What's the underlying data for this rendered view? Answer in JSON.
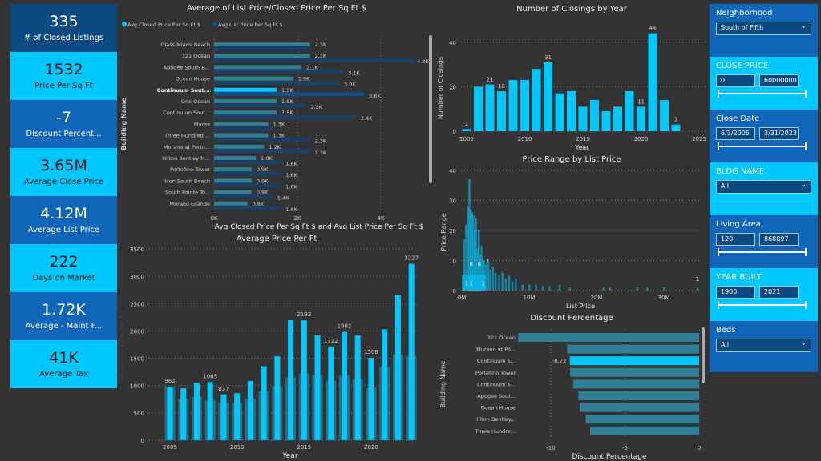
{
  "kpis": [
    {
      "value": "335",
      "label": "# of Closed Listings",
      "style": "dark"
    },
    {
      "value": "1532",
      "label": "Price Per Sq Ft",
      "style": "cyan"
    },
    {
      "value": "-7",
      "label": "Discount Percent...",
      "style": "blue"
    },
    {
      "value": "3.65M",
      "label": "Average Close Price",
      "style": "cyan"
    },
    {
      "value": "4.12M",
      "label": "Average List Price",
      "style": "blue"
    },
    {
      "value": "222",
      "label": "Days on Market",
      "style": "cyan"
    },
    {
      "value": "1.72K",
      "label": "Average - Maint F...",
      "style": "blue"
    },
    {
      "value": "41K",
      "label": "Average Tax",
      "style": "cyan"
    }
  ],
  "slicers": {
    "neighborhood": {
      "title": "Neighborhood",
      "value": "South of Fifth"
    },
    "close_price": {
      "title": "CLOSE PRICE",
      "min": "0",
      "max": "60000000"
    },
    "close_date": {
      "title": "Close Date",
      "min": "6/3/2005",
      "max": "3/31/2023"
    },
    "bldg_name": {
      "title": "BLDG NAME",
      "value": "All"
    },
    "living_area": {
      "title": "Living Area",
      "min": "120",
      "max": "868897"
    },
    "year_built": {
      "title": "YEAR BUILT",
      "min": "1900",
      "max": "2021"
    },
    "beds": {
      "title": "Beds",
      "value": "All"
    }
  },
  "colors": {
    "cyan": "#00c8ff",
    "teal": "#2f7f95",
    "navy": "#1c3f66",
    "bg": "#333333"
  },
  "chart_data": [
    {
      "type": "bar",
      "orientation": "horizontal",
      "title": "Average of List Price/Closed Price Per Sq Ft $",
      "legend": [
        "Avg Closed Price Per Sq Ft $",
        "Avg List Price Per Sq Ft $"
      ],
      "legend_position": "top-left",
      "ylabel": "Building Name",
      "xlabel": "Avg Closed Price Per Sq Ft $ and Avg List Price Per Sq Ft $",
      "xticks": [
        "0K",
        "2K",
        "4K"
      ],
      "xlim": [
        0,
        4.8
      ],
      "highlight": 4,
      "categories": [
        "Glass Miami Beach",
        "321 Ocean",
        "Apogee South B...",
        "Ocean House",
        "Continuum Sout...",
        "One Ocean",
        "Continuum Sout...",
        "Marea",
        "Three Hundred ...",
        "Murano at Porto...",
        "Hilton Bentley M...",
        "Portofino Tower",
        "Icon South Beach",
        "South Pointe To...",
        "Murano Grande"
      ],
      "closed": [
        2.3,
        2.3,
        2.1,
        1.9,
        1.5,
        1.5,
        1.5,
        1.3,
        1.3,
        1.2,
        1.0,
        0.9,
        0.9,
        0.9,
        0.8
      ],
      "closed_labels": [
        "2.3K",
        "2.3K",
        "2.1K",
        "1.9K",
        "1.5K",
        "1.5K",
        "1.5K",
        "1.3K",
        "1.3K",
        "1.2K",
        "1.0K",
        "0.9K",
        "0.9K",
        "0.9K",
        "0.8K"
      ],
      "list": [
        2.25,
        4.8,
        3.1,
        3.0,
        3.6,
        2.2,
        3.4,
        1.4,
        2.3,
        2.3,
        1.6,
        1.6,
        1.6,
        1.4,
        1.6
      ],
      "list_labels": [
        "",
        "4.8K",
        "3.1K",
        "3.0K",
        "3.6K",
        "2.2K",
        "3.4K",
        "",
        "2.3K",
        "2.3K",
        "1.6K",
        "1.6K",
        "1.6K",
        "1.4K",
        "1.6K"
      ]
    },
    {
      "type": "bar",
      "title": "Number of Closings by Year",
      "xlabel": "Year",
      "ylabel": "Number of Closings",
      "ylim": [
        0,
        44
      ],
      "xticks": [
        "2005",
        "2010",
        "2015",
        "2020",
        "2025"
      ],
      "yticks": [
        "0",
        "20",
        "40"
      ],
      "x": [
        2005,
        2006,
        2007,
        2008,
        2009,
        2010,
        2011,
        2012,
        2013,
        2014,
        2015,
        2016,
        2017,
        2018,
        2019,
        2020,
        2021,
        2022,
        2023
      ],
      "values": [
        1,
        20,
        21,
        18,
        23,
        23,
        28,
        31,
        17,
        18,
        11,
        14,
        9,
        11,
        18,
        11,
        44,
        14,
        3
      ],
      "labels": [
        "1",
        "",
        "21",
        "18",
        "",
        "",
        "",
        "31",
        "",
        "",
        "",
        "",
        "",
        "",
        "",
        "11",
        "44",
        "",
        "3"
      ]
    },
    {
      "type": "bar",
      "title": "Price Range by List Price",
      "xlabel": "List Price",
      "ylabel": "Price Range",
      "ylim": [
        0,
        40
      ],
      "xlim": [
        0,
        35
      ],
      "xticks": [
        "0M",
        "10M",
        "20M",
        "30M"
      ],
      "yticks": [
        "0",
        "10",
        "20",
        "30",
        "40"
      ],
      "x": [
        0.3,
        0.6,
        0.9,
        1.1,
        1.3,
        1.5,
        1.7,
        1.9,
        2.1,
        2.3,
        2.5,
        2.7,
        2.9,
        3.1,
        3.3,
        3.6,
        3.9,
        4.2,
        4.6,
        5.0,
        5.5,
        6.0,
        6.5,
        7.0,
        7.5,
        8.0,
        9,
        10,
        11,
        12,
        13,
        14.5,
        16,
        21,
        22,
        26,
        27.5,
        30,
        35
      ],
      "values": [
        17,
        22,
        28,
        37,
        27,
        26,
        25,
        20,
        24,
        14,
        20,
        12,
        15,
        11,
        10,
        9,
        10,
        7,
        8,
        6,
        5,
        6,
        4,
        5,
        3,
        4,
        2,
        2,
        2,
        1.5,
        1.5,
        2,
        1,
        1,
        1,
        1,
        1,
        1,
        1
      ],
      "labels": [
        {
          "x": 0.7,
          "text": "1"
        },
        {
          "x": 1.4,
          "text": "1"
        },
        {
          "x": 3.2,
          "text": "1"
        },
        {
          "x": 1.4,
          "text": "6",
          "y": 8
        },
        {
          "x": 2.6,
          "text": "6",
          "y": 8
        },
        {
          "x": 3.8,
          "text": "7",
          "y": 9
        },
        {
          "x": 35,
          "text": "1",
          "y": 3
        }
      ]
    },
    {
      "type": "bar",
      "title": "Average Price Per Ft",
      "xlabel": "Year",
      "ylabel": "Average Price Per Ft",
      "ylim": [
        0,
        3500
      ],
      "xticks": [
        "2005",
        "2010",
        "2015",
        "2020"
      ],
      "yticks": [
        "0",
        "500",
        "1000",
        "1500",
        "2000",
        "2500",
        "3000",
        "3500"
      ],
      "x": [
        2005,
        2006,
        2007,
        2008,
        2009,
        2010,
        2011,
        2012,
        2013,
        2014,
        2015,
        2016,
        2017,
        2018,
        2019,
        2020,
        2021,
        2022,
        2023
      ],
      "series": [
        {
          "values": [
            982,
            950,
            1050,
            1065,
            837,
            860,
            1085,
            1355,
            1535,
            2195,
            2193,
            1920,
            1712,
            1982,
            1915,
            1508,
            2030,
            2655,
            3227
          ],
          "labels": [
            "982",
            "",
            "",
            "1065",
            "837",
            "",
            "",
            "",
            "",
            "",
            "2193",
            "",
            "1712",
            "1982",
            "",
            "1508",
            "",
            "",
            "3227"
          ]
        },
        {
          "values": [
            985,
            760,
            800,
            735,
            680,
            680,
            760,
            890,
            980,
            1150,
            1220,
            1190,
            1090,
            1190,
            1110,
            960,
            1340,
            1570,
            1540
          ]
        }
      ]
    },
    {
      "type": "bar",
      "orientation": "horizontal",
      "title": "Discount Percentage",
      "xlabel": "Discount Percentage",
      "ylabel": "Building Name",
      "xlim": [
        -12.2,
        0
      ],
      "xticks": [
        "-10",
        "-5",
        "0"
      ],
      "highlight": 2,
      "categories": [
        "321 Ocean",
        "Murano at Po...",
        "Continuum S...",
        "Portofino Tower",
        "Continuum S...",
        "Apogee Sout...",
        "Ocean House",
        "Hilton Bentley...",
        "Three Hundre..."
      ],
      "values": [
        -12.2,
        -8.9,
        -8.72,
        -8.7,
        -8.5,
        -8.15,
        -8.05,
        -7.65,
        -7.35
      ],
      "labels": [
        "",
        "",
        "-8.72",
        "",
        "",
        "",
        "",
        "",
        ""
      ]
    }
  ]
}
